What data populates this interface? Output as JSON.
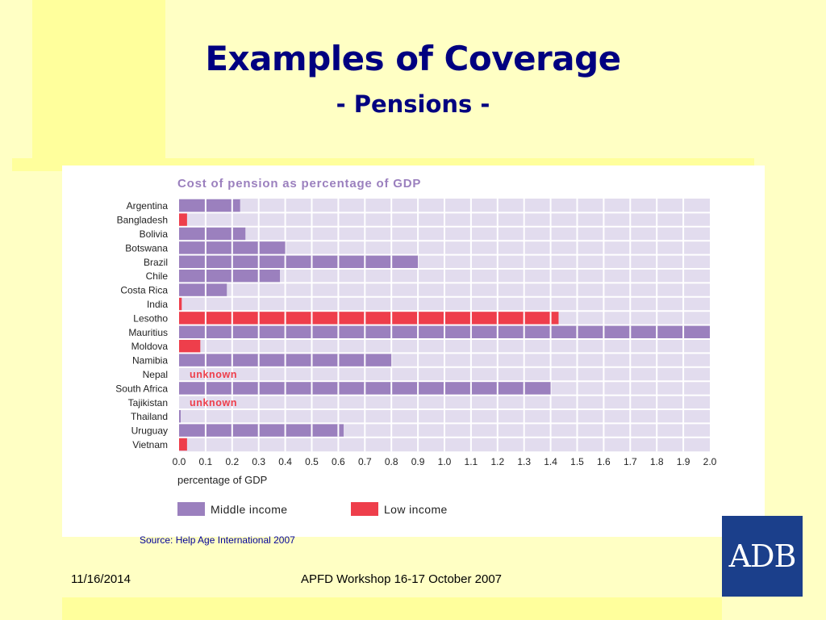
{
  "slide": {
    "title": "Examples of Coverage",
    "subtitle": "- Pensions -",
    "source_prefix": "Source: ",
    "source_text": "Help Age International 2007",
    "footer_date": "11/16/2014",
    "footer_event": "APFD Workshop 16-17 October 2007",
    "logo_text": "ADB"
  },
  "colors": {
    "background": "#FFFFC4",
    "title": "#000080",
    "middle_income": "#9B80BE",
    "low_income": "#EE3E4B",
    "unknown_text": "#EE3E4B",
    "chart_title": "#9B80BE",
    "grid_fill": "#E2DCEE",
    "logo": "#1b3f8b"
  },
  "chart_data": {
    "type": "bar",
    "orientation": "horizontal",
    "title": "Cost of pension as percentage of GDP",
    "xlabel": "percentage of GDP",
    "xlim": [
      0,
      2.0
    ],
    "x_ticks": [
      "0.0",
      "0.1",
      "0.2",
      "0.3",
      "0.4",
      "0.5",
      "0.6",
      "0.7",
      "0.8",
      "0.9",
      "1.0",
      "1.1",
      "1.2",
      "1.3",
      "1.4",
      "1.5",
      "1.6",
      "1.7",
      "1.8",
      "1.9",
      "2.0"
    ],
    "grid": true,
    "legend_position": "bottom",
    "legend": [
      {
        "name": "Middle income",
        "group": "middle"
      },
      {
        "name": "Low income",
        "group": "low"
      }
    ],
    "categories": [
      "Argentina",
      "Bangladesh",
      "Bolivia",
      "Botswana",
      "Brazil",
      "Chile",
      "Costa Rica",
      "India",
      "Lesotho",
      "Mauritius",
      "Moldova",
      "Namibia",
      "Nepal",
      "South Africa",
      "Tajikistan",
      "Thailand",
      "Uruguay",
      "Vietnam"
    ],
    "values": [
      0.23,
      0.03,
      0.25,
      0.4,
      0.9,
      0.38,
      0.18,
      0.01,
      1.43,
      2.0,
      0.08,
      0.8,
      null,
      1.4,
      null,
      0.005,
      0.62,
      0.03
    ],
    "groups": [
      "middle",
      "low",
      "middle",
      "middle",
      "middle",
      "middle",
      "middle",
      "low",
      "low",
      "middle",
      "low",
      "middle",
      "low",
      "middle",
      "low",
      "middle",
      "middle",
      "low"
    ],
    "annotations": [
      "",
      "",
      "",
      "",
      "",
      "",
      "",
      "",
      "",
      "",
      "",
      "",
      "unknown",
      "",
      "unknown",
      "",
      "",
      ""
    ]
  }
}
